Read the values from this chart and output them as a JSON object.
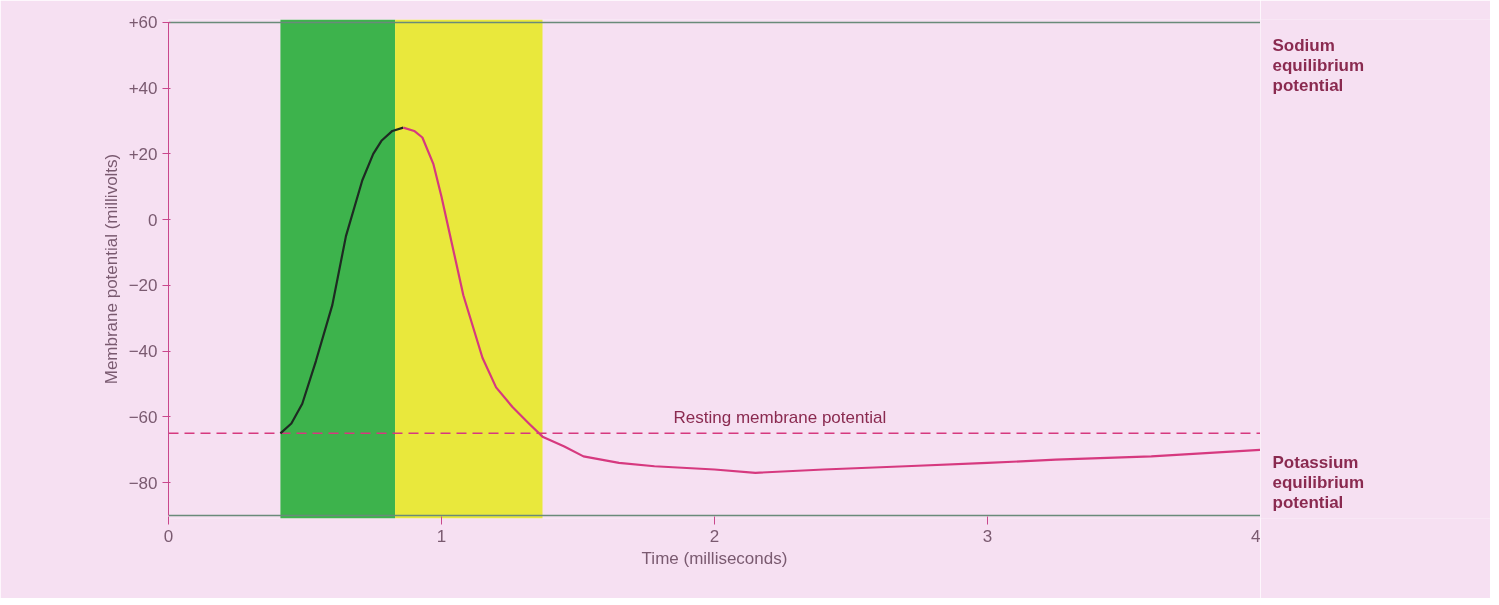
{
  "chart_data": {
    "type": "line",
    "xlabel": "Time (milliseconds)",
    "ylabel": "Membrane potential (millivolts)",
    "xlim": [
      0,
      4
    ],
    "ylim": [
      -90,
      60
    ],
    "xticks": [
      0,
      1,
      2,
      3,
      4
    ],
    "yticks": [
      {
        "value": 60,
        "label": "+60"
      },
      {
        "value": 40,
        "label": "+40"
      },
      {
        "value": 20,
        "label": "+20"
      },
      0,
      {
        "value": -20,
        "label": "−20"
      },
      {
        "value": -40,
        "label": "−40"
      },
      {
        "value": -60,
        "label": "−60"
      },
      {
        "value": -80,
        "label": "−80"
      }
    ],
    "grid": false,
    "marker": "none",
    "series": [
      {
        "color": "#1e2a22",
        "x": [
          0.41,
          0.45,
          0.49,
          0.54,
          0.6,
          0.65,
          0.71,
          0.75,
          0.78,
          0.82,
          0.86
        ],
        "values": [
          -65,
          -62,
          -56,
          -43,
          -26,
          -5,
          12,
          20,
          24,
          27,
          28
        ]
      },
      {
        "color": "#d6397f",
        "x": [
          0.86,
          0.9,
          0.93,
          0.97,
          1.0,
          1.04,
          1.08,
          1.15,
          1.2,
          1.26,
          1.32,
          1.37,
          1.45,
          1.52,
          1.65,
          1.78,
          2.0,
          2.15,
          2.4,
          2.7,
          3.0,
          3.25,
          3.6,
          4.0
        ],
        "values": [
          28,
          27,
          25,
          17,
          7,
          -8,
          -23,
          -42,
          -51,
          -57,
          -62,
          -66,
          -69,
          -72,
          -74,
          -75,
          -76,
          -77,
          -76,
          -75,
          -74,
          -73,
          -72,
          -70
        ]
      }
    ],
    "bands": [
      {
        "axis": "x",
        "from": 0.41,
        "to": 0.83,
        "label": null,
        "color": "#3db34c"
      },
      {
        "axis": "x",
        "from": 0.83,
        "to": 1.37,
        "label": null,
        "color": "#e9e83c"
      }
    ],
    "ref_lines": [
      {
        "axis": "y",
        "value": -65,
        "label": "Resting membrane potential",
        "color": "#d6397f",
        "line_style": "dashed"
      },
      {
        "axis": "y",
        "value": 60,
        "label": "Sodium equilibrium potential",
        "color": "#6a8a7a",
        "line_style": "solid"
      },
      {
        "axis": "y",
        "value": -90,
        "label": "Potassium equilibrium potential",
        "color": "#6a8a7a",
        "line_style": "solid"
      }
    ]
  }
}
